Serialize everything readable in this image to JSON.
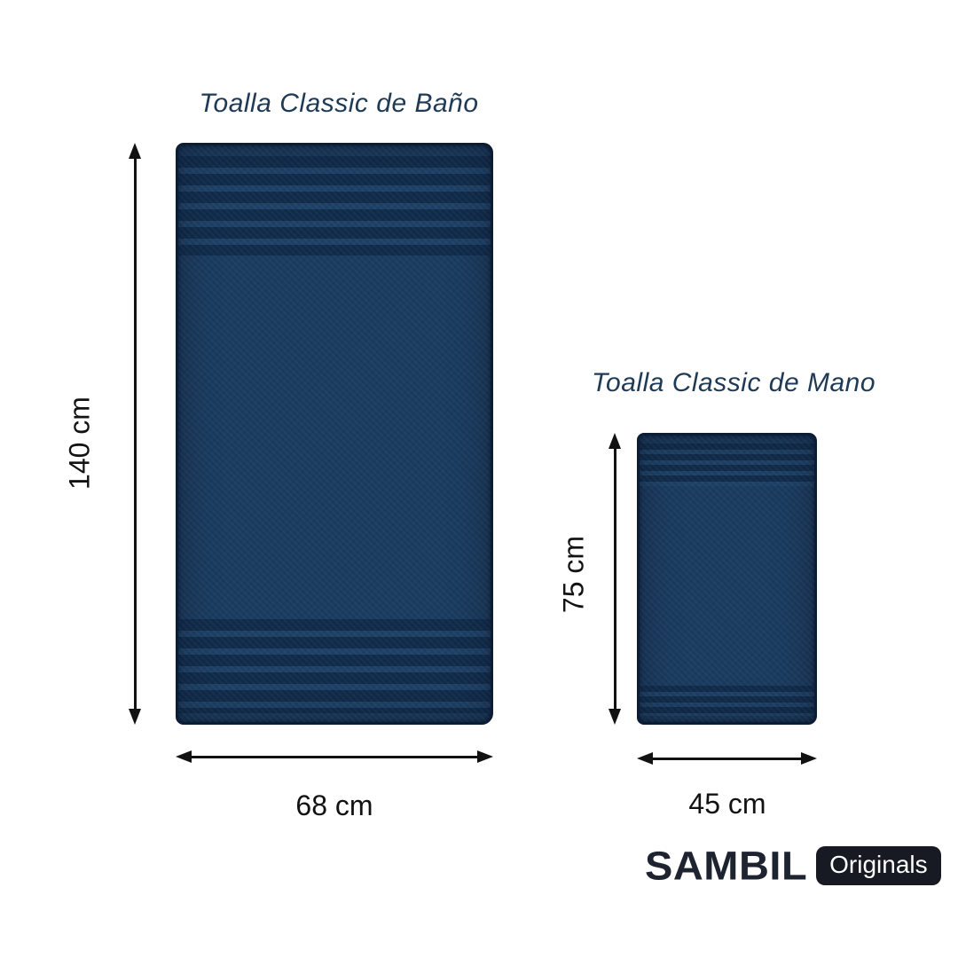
{
  "page": {
    "background": "#ffffff"
  },
  "bath_towel": {
    "title": "Toalla Classic de Baño",
    "height_label": "140 cm",
    "width_label": "68 cm"
  },
  "hand_towel": {
    "title": "Toalla Classic de Mano",
    "height_label": "75 cm",
    "width_label": "45 cm"
  },
  "brand": {
    "name": "SAMBIL",
    "badge_label": "Originals"
  },
  "colors": {
    "towel_body": "#1b3c60",
    "towel_stripe": "#0f2a4a",
    "towel_edge": "#0b1d36",
    "title_text": "#1e3a55",
    "dimension_text": "#121212",
    "arrow": "#121212",
    "logo_text": "#1e2330",
    "badge_background": "#171a23",
    "badge_text": "#ffffff",
    "background": "#ffffff"
  }
}
